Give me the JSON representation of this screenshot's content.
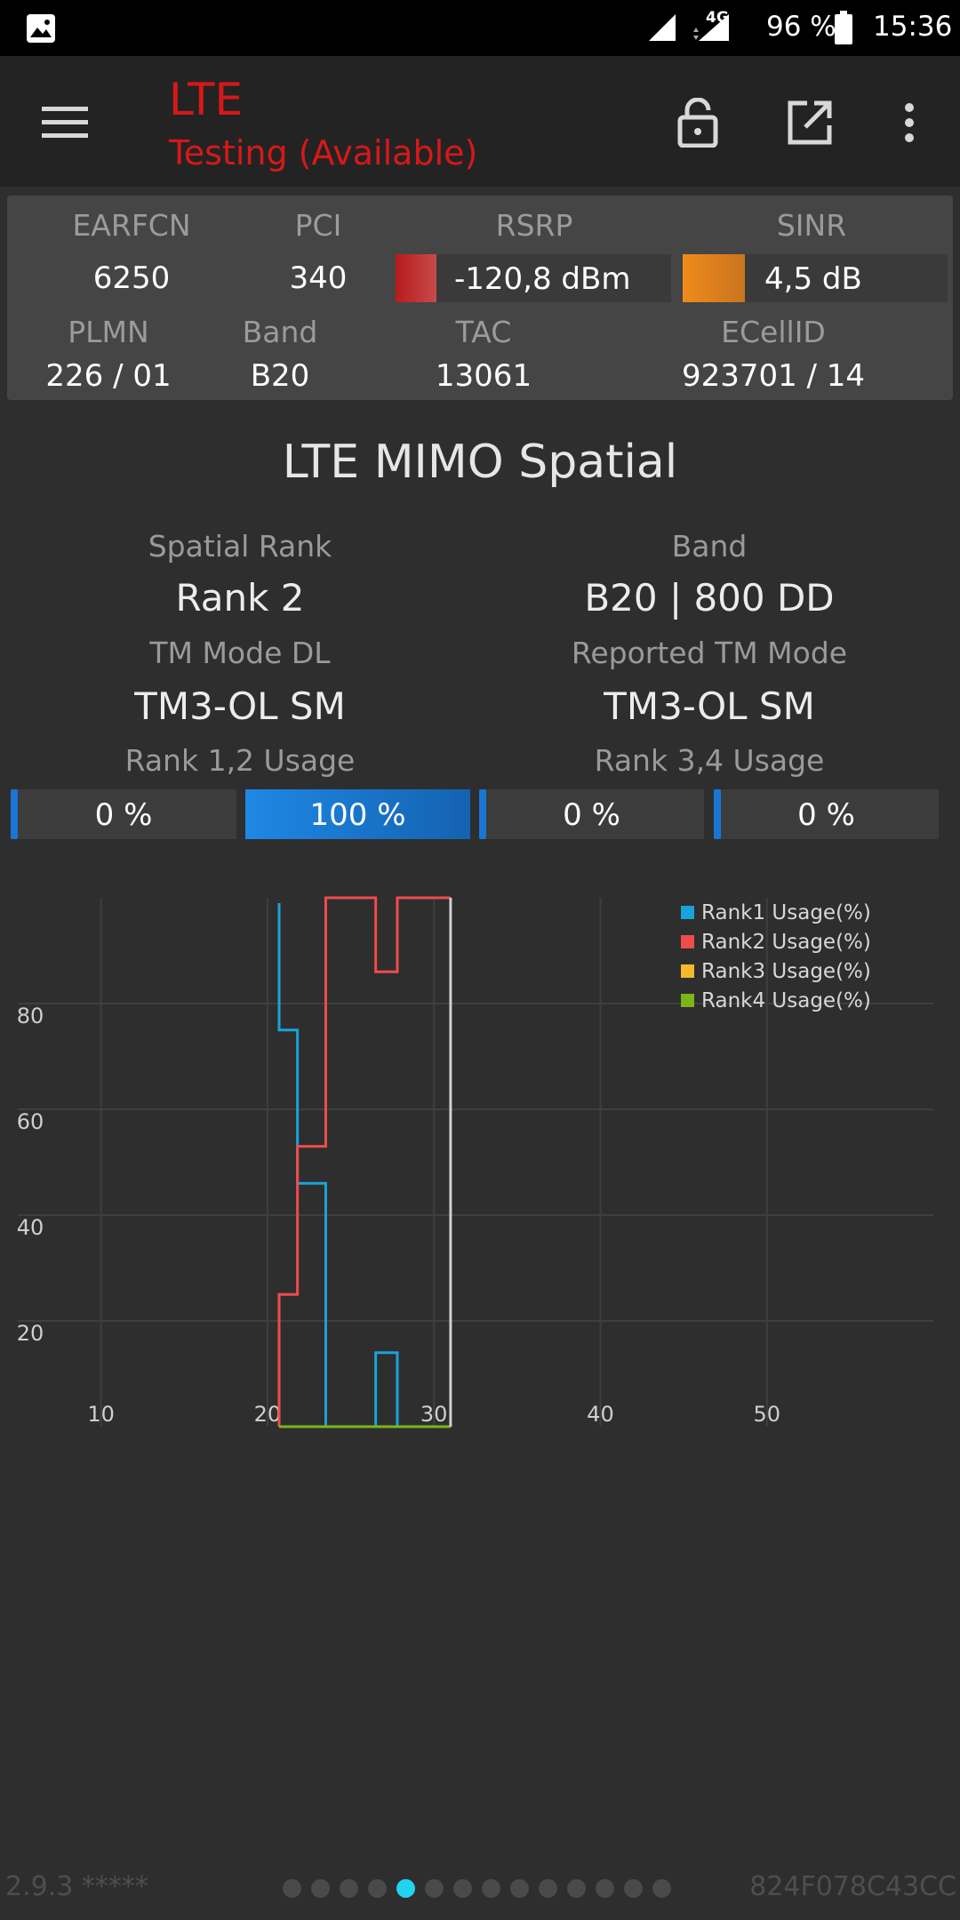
{
  "status_bar": {
    "network": "4G",
    "battery": "96 %",
    "time": "15:36"
  },
  "app_bar": {
    "title": "LTE",
    "subtitle": "Testing (Available)",
    "icons": [
      "menu-icon",
      "unlock-icon",
      "open-external-icon",
      "more-vert-icon"
    ],
    "accent_color": "#d71818"
  },
  "cell_info": {
    "labels": {
      "earfcn": "EARFCN",
      "pci": "PCI",
      "rsrp": "RSRP",
      "sinr": "SINR",
      "plmn": "PLMN",
      "band": "Band",
      "tac": "TAC",
      "ecellid": "ECellID"
    },
    "values": {
      "earfcn": "6250",
      "pci": "340",
      "rsrp": "-120,8 dBm",
      "sinr": "4,5 dB",
      "plmn": "226 / 01",
      "band": "B20",
      "tac": "13061",
      "ecellid": "923701 / 14"
    },
    "rsrp_color": "#c62828",
    "sinr_color": "#ef8a1e"
  },
  "spatial": {
    "title": "LTE MIMO Spatial",
    "spatial_rank_label": "Spatial Rank",
    "spatial_rank": "Rank 2",
    "band_label": "Band",
    "band": "B20 | 800 DD",
    "tm_mode_dl_label": "TM Mode DL",
    "tm_mode_dl": "TM3-OL SM",
    "reported_tm_label": "Reported TM Mode",
    "reported_tm": "TM3-OL SM",
    "rank12_label": "Rank 1,2 Usage",
    "rank34_label": "Rank 3,4 Usage",
    "usage": [
      {
        "label": "0 %",
        "value": 0
      },
      {
        "label": "100 %",
        "value": 100
      },
      {
        "label": "0 %",
        "value": 0
      },
      {
        "label": "0 %",
        "value": 0
      }
    ]
  },
  "chart_data": {
    "type": "line",
    "title": "",
    "xlabel": "",
    "ylabel": "",
    "xlim": [
      5,
      60
    ],
    "ylim": [
      0,
      100
    ],
    "x_ticks": [
      10,
      20,
      30,
      40,
      50
    ],
    "y_ticks": [
      20,
      40,
      60,
      80
    ],
    "grid": true,
    "legend": "top-right",
    "cursor_x": 31,
    "series": [
      {
        "name": "Rank1 Usage(%)",
        "color": "#1aa3d9",
        "x": [
          20.7,
          20.7,
          21.8,
          21.8,
          23.5,
          23.5,
          26.5,
          26.5,
          27.8,
          27.8,
          31
        ],
        "y": [
          99,
          75,
          75,
          46,
          46,
          0,
          0,
          14,
          14,
          0,
          0
        ]
      },
      {
        "name": "Rank2 Usage(%)",
        "color": "#f04b4b",
        "x": [
          20.7,
          20.7,
          21.8,
          21.8,
          23.5,
          23.5,
          26.5,
          26.5,
          27.8,
          27.8,
          31
        ],
        "y": [
          0,
          25,
          25,
          53,
          53,
          100,
          100,
          86,
          86,
          100,
          100
        ]
      },
      {
        "name": "Rank3 Usage(%)",
        "color": "#f6b92b",
        "x": [
          20.7,
          31
        ],
        "y": [
          0,
          0
        ]
      },
      {
        "name": "Rank4 Usage(%)",
        "color": "#7cb518",
        "x": [
          20.7,
          31
        ],
        "y": [
          0,
          0
        ]
      }
    ]
  },
  "footer": {
    "version": "2.9.3 *****",
    "device_id": "824F078C43CC",
    "page_count": 14,
    "active_page": 5
  }
}
